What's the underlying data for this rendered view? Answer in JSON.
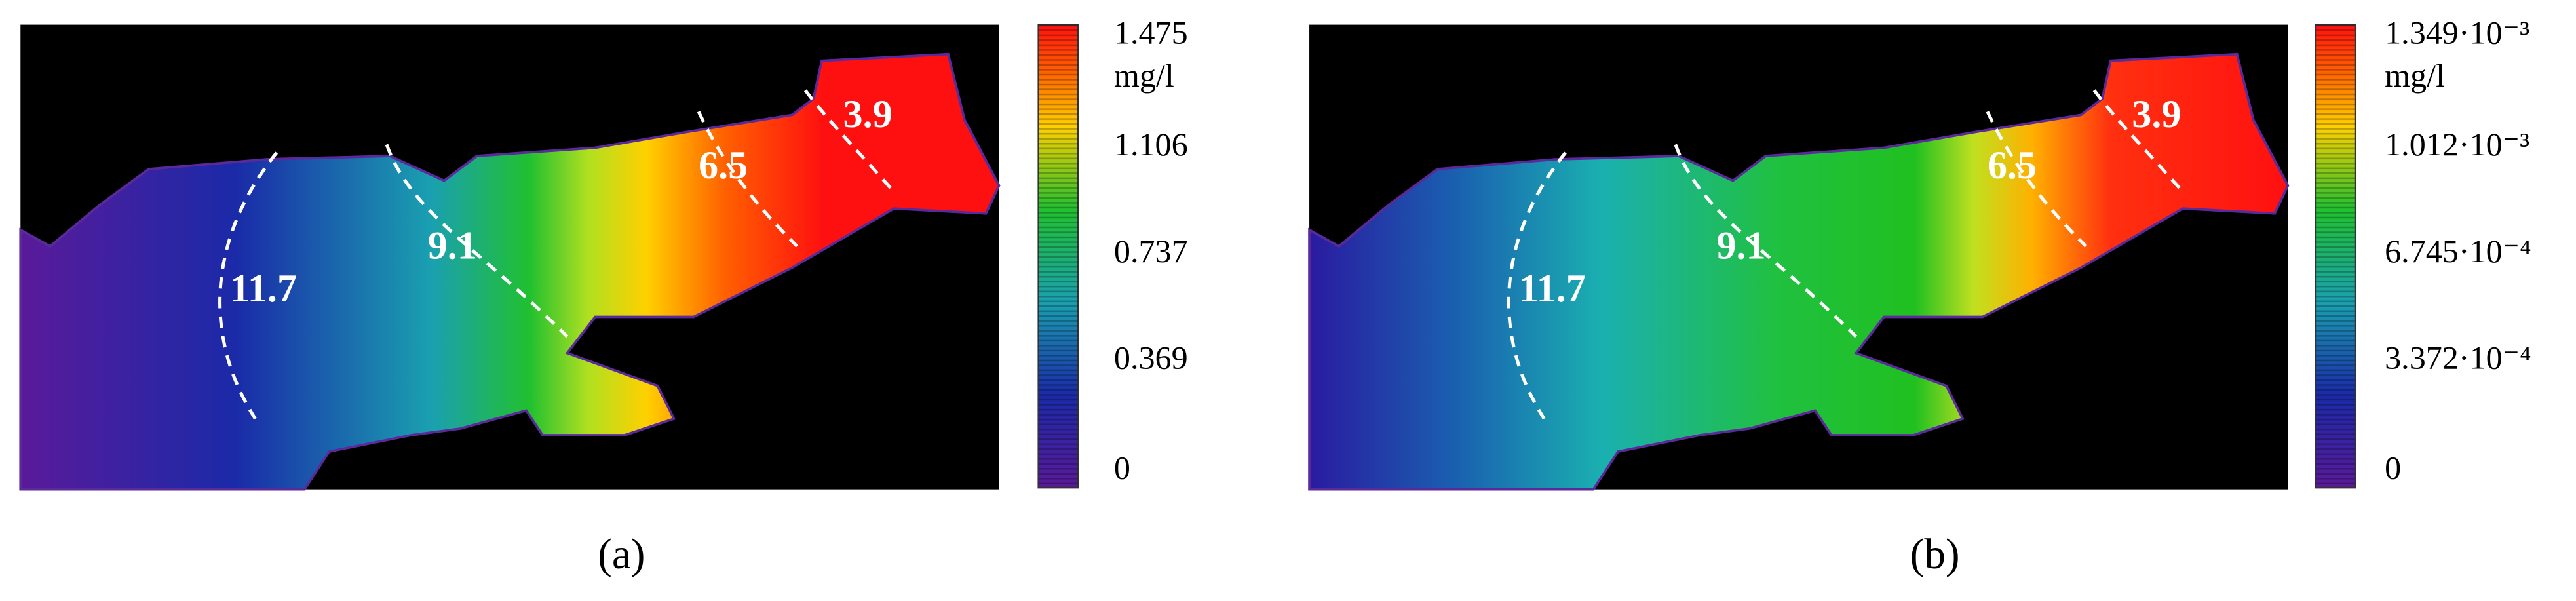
{
  "panels": [
    {
      "caption": "(a)",
      "unit": "mg/l",
      "colorbar_ticks": [
        "1.475",
        "1.106",
        "0.737",
        "0.369",
        "0"
      ],
      "contour_labels": [
        "11.7",
        "9.1",
        "6.5",
        "3.9"
      ]
    },
    {
      "caption": "(b)",
      "unit": "mg/l",
      "colorbar_ticks": [
        "1.349·10⁻³",
        "1.012·10⁻³",
        "6.745·10⁻⁴",
        "3.372·10⁻⁴",
        "0"
      ],
      "contour_labels": [
        "11.7",
        "9.1",
        "6.5",
        "3.9"
      ]
    }
  ]
}
